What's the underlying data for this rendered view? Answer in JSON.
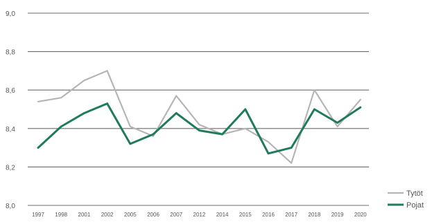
{
  "chart_data": {
    "type": "line",
    "categories": [
      "1997",
      "1998",
      "2001",
      "2002",
      "2005",
      "2006",
      "2007",
      "2012",
      "2014",
      "2015",
      "2016",
      "2017",
      "2018",
      "2019",
      "2020"
    ],
    "series": [
      {
        "name": "Tytöt",
        "color": "#b5b5b5",
        "values": [
          8.54,
          8.56,
          8.65,
          8.7,
          8.41,
          8.36,
          8.57,
          8.42,
          8.37,
          8.4,
          8.33,
          8.22,
          8.6,
          8.41,
          8.55
        ]
      },
      {
        "name": "Pojat",
        "color": "#1f7a5e",
        "values": [
          8.3,
          8.41,
          8.48,
          8.53,
          8.32,
          8.37,
          8.48,
          8.39,
          8.37,
          8.5,
          8.27,
          8.3,
          8.5,
          8.43,
          8.51
        ]
      }
    ],
    "yticks": [
      "8,0",
      "8,2",
      "8,4",
      "8,6",
      "8,8",
      "9,0"
    ],
    "ylim": [
      8.0,
      9.0
    ],
    "grid": true,
    "legend_position": "bottom-right",
    "title": "",
    "xlabel": "",
    "ylabel": ""
  }
}
